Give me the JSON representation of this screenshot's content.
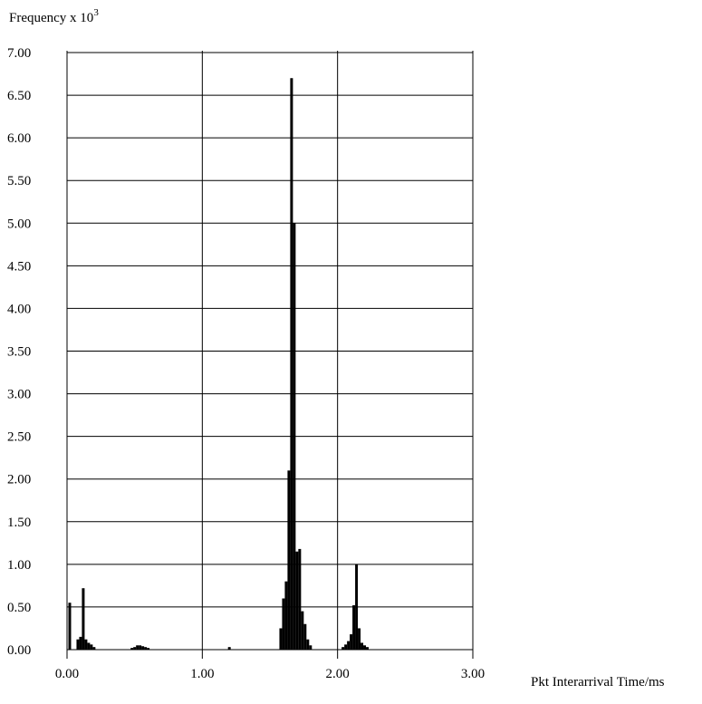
{
  "chart_data": {
    "type": "bar",
    "title": "",
    "ylabel": "Frequency x 10",
    "ylabel_superscript": "3",
    "xlabel": "Pkt Interarrival Time/ms",
    "xlim": [
      0.0,
      3.0
    ],
    "ylim": [
      0.0,
      7.0
    ],
    "x_ticks": [
      0.0,
      1.0,
      2.0,
      3.0
    ],
    "x_tick_labels": [
      "0.00",
      "1.00",
      "2.00",
      "3.00"
    ],
    "y_ticks": [
      0.0,
      0.5,
      1.0,
      1.5,
      2.0,
      2.5,
      3.0,
      3.5,
      4.0,
      4.5,
      5.0,
      5.5,
      6.0,
      6.5,
      7.0
    ],
    "y_tick_labels": [
      "0.00",
      "0.50",
      "1.00",
      "1.50",
      "2.00",
      "2.50",
      "3.00",
      "3.50",
      "4.00",
      "4.50",
      "5.00",
      "5.50",
      "6.00",
      "6.50",
      "7.00"
    ],
    "grid": true,
    "bin_width": 0.02,
    "bars": [
      {
        "x": 0.02,
        "y": 0.55
      },
      {
        "x": 0.08,
        "y": 0.12
      },
      {
        "x": 0.1,
        "y": 0.15
      },
      {
        "x": 0.12,
        "y": 0.72
      },
      {
        "x": 0.14,
        "y": 0.12
      },
      {
        "x": 0.16,
        "y": 0.08
      },
      {
        "x": 0.18,
        "y": 0.06
      },
      {
        "x": 0.2,
        "y": 0.03
      },
      {
        "x": 0.48,
        "y": 0.02
      },
      {
        "x": 0.5,
        "y": 0.03
      },
      {
        "x": 0.52,
        "y": 0.05
      },
      {
        "x": 0.54,
        "y": 0.05
      },
      {
        "x": 0.56,
        "y": 0.04
      },
      {
        "x": 0.58,
        "y": 0.03
      },
      {
        "x": 0.6,
        "y": 0.02
      },
      {
        "x": 1.2,
        "y": 0.03
      },
      {
        "x": 1.58,
        "y": 0.25
      },
      {
        "x": 1.6,
        "y": 0.6
      },
      {
        "x": 1.62,
        "y": 0.8
      },
      {
        "x": 1.64,
        "y": 2.1
      },
      {
        "x": 1.66,
        "y": 6.7
      },
      {
        "x": 1.68,
        "y": 5.0
      },
      {
        "x": 1.7,
        "y": 1.15
      },
      {
        "x": 1.72,
        "y": 1.18
      },
      {
        "x": 1.74,
        "y": 0.45
      },
      {
        "x": 1.76,
        "y": 0.3
      },
      {
        "x": 1.78,
        "y": 0.12
      },
      {
        "x": 1.8,
        "y": 0.05
      },
      {
        "x": 2.04,
        "y": 0.03
      },
      {
        "x": 2.06,
        "y": 0.06
      },
      {
        "x": 2.08,
        "y": 0.1
      },
      {
        "x": 2.1,
        "y": 0.18
      },
      {
        "x": 2.12,
        "y": 0.52
      },
      {
        "x": 2.14,
        "y": 1.0
      },
      {
        "x": 2.16,
        "y": 0.25
      },
      {
        "x": 2.18,
        "y": 0.08
      },
      {
        "x": 2.2,
        "y": 0.05
      },
      {
        "x": 2.22,
        "y": 0.03
      }
    ]
  }
}
